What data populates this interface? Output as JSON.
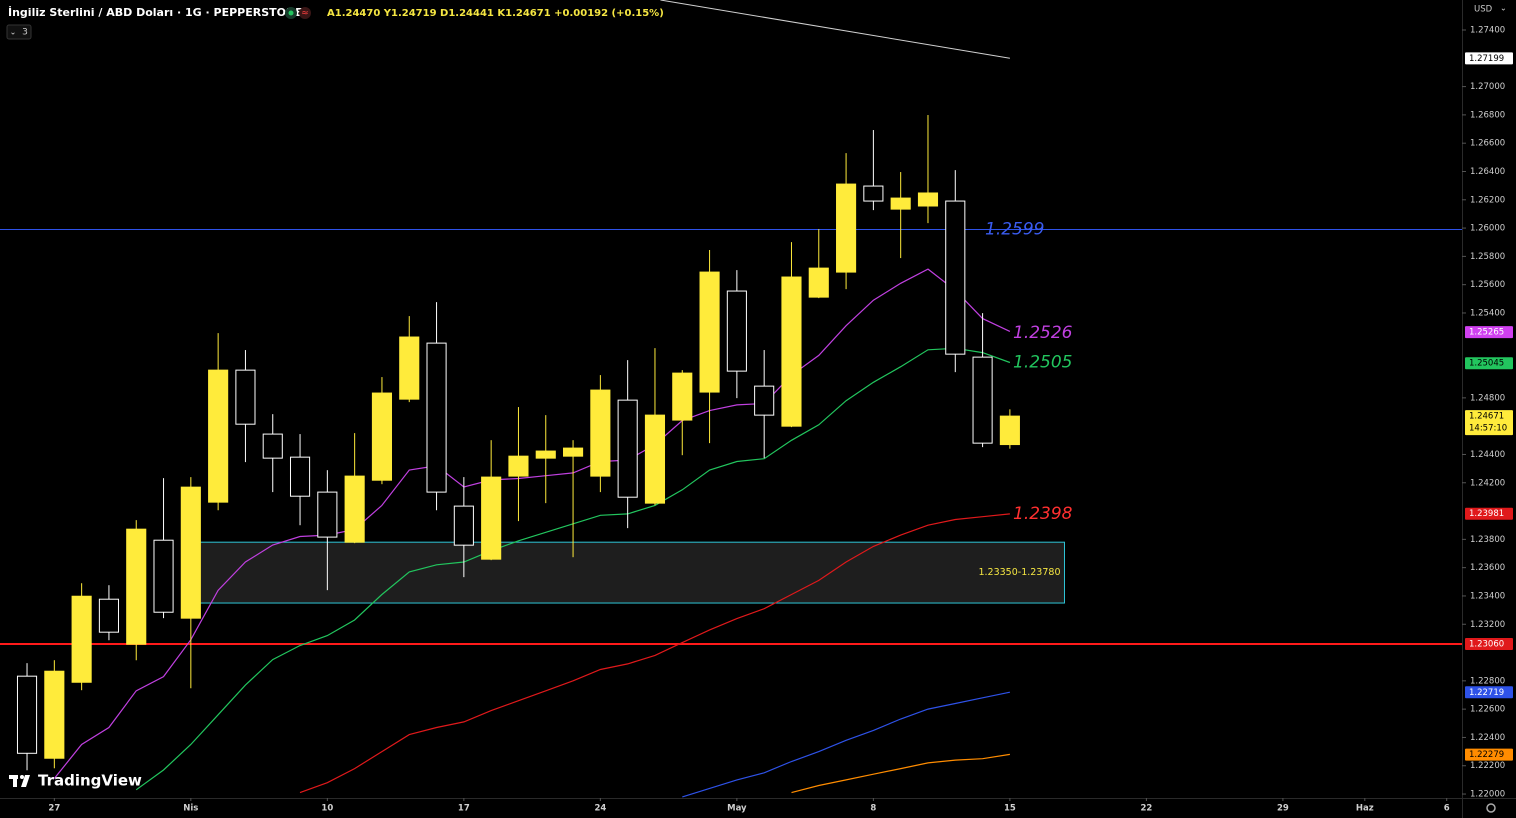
{
  "chart_data": {
    "type": "candlestick",
    "symbol": "İngiliz Sterlini / ABD Doları · 1G · PEPPERSTONE",
    "ohlc_text": "A1.24470 Y1.24719 D1.24441 K1.24671 +0.00192 (+0.15%)",
    "indicator_count": "3",
    "currency": "USD",
    "brand": "TradingView",
    "bull_color": "#ffeb3b",
    "bear_color": "#ffffff",
    "open": [
      1.22833,
      1.22253,
      1.2279,
      1.23377,
      1.23059,
      1.23794,
      1.23243,
      1.24063,
      1.24996,
      1.24544,
      1.24381,
      1.24134,
      1.2378,
      1.24218,
      1.24791,
      1.25187,
      1.24035,
      1.2366,
      1.24247,
      1.24374,
      1.24388,
      1.24247,
      1.24784,
      1.24056,
      1.24643,
      1.24841,
      1.25555,
      1.24883,
      1.246,
      1.25512,
      1.25689,
      1.26297,
      1.26134,
      1.26156,
      1.26191,
      1.25088,
      1.2447
    ],
    "high": [
      1.22925,
      1.22946,
      1.2349,
      1.23476,
      1.23936,
      1.24233,
      1.2424,
      1.25258,
      1.25138,
      1.24685,
      1.24544,
      1.24289,
      1.24551,
      1.24947,
      1.25378,
      1.25477,
      1.2424,
      1.24501,
      1.24735,
      1.24678,
      1.24501,
      1.24961,
      1.25067,
      1.25152,
      1.24996,
      1.25845,
      1.25703,
      1.25138,
      1.25901,
      1.25993,
      1.2653,
      1.26693,
      1.26396,
      1.26799,
      1.2641,
      1.25399,
      1.24719
    ],
    "low": [
      1.22168,
      1.22182,
      1.22734,
      1.23087,
      1.22946,
      1.23243,
      1.22748,
      1.24006,
      1.24346,
      1.24134,
      1.239,
      1.23441,
      1.23773,
      1.2419,
      1.2477,
      1.24006,
      1.23533,
      1.23653,
      1.23929,
      1.24056,
      1.23674,
      1.24134,
      1.23879,
      1.24042,
      1.24395,
      1.2448,
      1.24798,
      1.24374,
      1.24593,
      1.25505,
      1.25569,
      1.26127,
      1.25788,
      1.26035,
      1.24982,
      1.24452,
      1.24441
    ],
    "close": [
      1.22288,
      1.22868,
      1.23398,
      1.23144,
      1.23872,
      1.23285,
      1.24169,
      1.24996,
      1.24614,
      1.24374,
      1.24105,
      1.23816,
      1.24247,
      1.24834,
      1.2523,
      1.24134,
      1.23759,
      1.2424,
      1.24388,
      1.24424,
      1.24445,
      1.24855,
      1.24098,
      1.24678,
      1.24975,
      1.25689,
      1.24989,
      1.24678,
      1.25654,
      1.25717,
      1.26311,
      1.26191,
      1.26212,
      1.26248,
      1.25109,
      1.2448,
      1.24671
    ],
    "overlays": [
      {
        "color": "#c040e0",
        "values": [
          null,
          1.2211,
          1.2235,
          1.2247,
          1.2273,
          1.2283,
          1.2309,
          1.2344,
          1.2364,
          1.2376,
          1.2382,
          1.2383,
          1.2387,
          1.2404,
          1.2429,
          1.2432,
          1.2417,
          1.2422,
          1.2423,
          1.2425,
          1.2427,
          1.2435,
          1.2436,
          1.2447,
          1.2464,
          1.2471,
          1.2475,
          1.2476,
          1.2496,
          1.251,
          1.2531,
          1.2549,
          1.2561,
          1.2571,
          1.2556,
          1.2536,
          1.2527
        ]
      },
      {
        "color": "#22c55e",
        "values": [
          null,
          null,
          null,
          null,
          1.2203,
          1.2217,
          1.2235,
          1.2256,
          1.2277,
          1.2295,
          1.2305,
          1.2312,
          1.2323,
          1.2341,
          1.2357,
          1.2362,
          1.2364,
          1.2372,
          1.2379,
          1.2385,
          1.2391,
          1.2397,
          1.2398,
          1.2404,
          1.2415,
          1.2429,
          1.2435,
          1.2437,
          1.245,
          1.2461,
          1.2478,
          1.2491,
          1.2502,
          1.2514,
          1.2515,
          1.2512,
          1.2505
        ]
      },
      {
        "color": "#e0191b",
        "values": [
          null,
          null,
          null,
          null,
          null,
          null,
          null,
          null,
          null,
          null,
          1.2201,
          1.2208,
          1.2218,
          1.223,
          1.2242,
          1.2247,
          1.2251,
          1.2259,
          1.2266,
          1.2273,
          1.228,
          1.2288,
          1.2292,
          1.2298,
          1.2307,
          1.2316,
          1.2324,
          1.2331,
          1.2341,
          1.2351,
          1.2364,
          1.2375,
          1.2383,
          1.239,
          1.2394,
          1.2396,
          1.2398
        ]
      },
      {
        "color": "#2e52e8",
        "values": [
          null,
          null,
          null,
          null,
          null,
          null,
          null,
          null,
          null,
          null,
          null,
          null,
          null,
          null,
          null,
          null,
          null,
          null,
          null,
          null,
          null,
          null,
          null,
          null,
          1.2198,
          1.2204,
          1.221,
          1.2215,
          1.2223,
          1.223,
          1.2238,
          1.2245,
          1.2253,
          1.226,
          1.2264,
          1.2268,
          1.2272
        ]
      },
      {
        "color": "#ff8c00",
        "values": [
          null,
          null,
          null,
          null,
          null,
          null,
          null,
          null,
          null,
          null,
          null,
          null,
          null,
          null,
          null,
          null,
          null,
          null,
          null,
          null,
          null,
          null,
          null,
          null,
          null,
          null,
          null,
          null,
          1.2201,
          1.2206,
          1.221,
          1.2214,
          1.2218,
          1.2222,
          1.2224,
          1.2225,
          1.2228
        ]
      }
    ],
    "hlines": [
      {
        "value": 1.2599,
        "color": "#2e52e8"
      },
      {
        "value": 1.2306,
        "color": "#ff1a1a"
      }
    ],
    "trendline": {
      "x": [
        23.2,
        36
      ],
      "y": [
        1.27612,
        1.272
      ],
      "color": "#d0d0d0"
    },
    "zone": {
      "low": 1.2335,
      "high": 1.2378,
      "start": 6,
      "end": 38,
      "label": "1.23350-1.23780",
      "color": "#2ec4d6"
    },
    "annotations": [
      {
        "value": 1.2599,
        "color": "#3a5cf0"
      },
      {
        "value": 1.2526,
        "color": "#c040e0"
      },
      {
        "value": 1.2505,
        "color": "#22c55e"
      },
      {
        "value": 1.2398,
        "color": "#ff3030"
      }
    ],
    "markers": [
      {
        "price": 1.27199,
        "color": "#ffffff",
        "text_color": "#000000"
      },
      {
        "price": 1.25265,
        "color": "#d040f0",
        "text_color": "#ffffff"
      },
      {
        "price": 1.25045,
        "color": "#22c55e",
        "text_color": "#000000"
      },
      {
        "price": 1.24671,
        "countdown": "14:57:10",
        "color": "#ffeb3b",
        "text_color": "#000000"
      },
      {
        "price": 1.23981,
        "color": "#e0191b",
        "text_color": "#ffffff"
      },
      {
        "price": 1.2306,
        "label": "1.23060",
        "color": "#e0191b",
        "text_color": "#ffffff"
      },
      {
        "price": 1.22719,
        "color": "#2e52e8",
        "text_color": "#ffffff"
      },
      {
        "price": 1.22279,
        "color": "#ff8c00",
        "text_color": "#000000"
      }
    ],
    "xlim": [
      -0.99,
      52.56
    ],
    "ylim": [
      1.21972,
      1.27612
    ],
    "xticks": [
      {
        "value": 1,
        "label": "27"
      },
      {
        "value": 6,
        "label": "Nis"
      },
      {
        "value": 11,
        "label": "10"
      },
      {
        "value": 16,
        "label": "17"
      },
      {
        "value": 21,
        "label": "24"
      },
      {
        "value": 26,
        "label": "May"
      },
      {
        "value": 31,
        "label": "8"
      },
      {
        "value": 36,
        "label": "15"
      },
      {
        "value": 41,
        "label": "22"
      },
      {
        "value": 46,
        "label": "29"
      },
      {
        "value": 49,
        "label": "Haz"
      },
      {
        "value": 52,
        "label": "6"
      }
    ],
    "yticks": [
      {
        "value": 1.274,
        "label": "1.27400"
      },
      {
        "value": 1.27,
        "label": "1.27000"
      },
      {
        "value": 1.268,
        "label": "1.26800"
      },
      {
        "value": 1.266,
        "label": "1.26600"
      },
      {
        "value": 1.264,
        "label": "1.26400"
      },
      {
        "value": 1.262,
        "label": "1.26200"
      },
      {
        "value": 1.26,
        "label": "1.26000"
      },
      {
        "value": 1.258,
        "label": "1.25800"
      },
      {
        "value": 1.256,
        "label": "1.25600"
      },
      {
        "value": 1.254,
        "label": "1.25400"
      },
      {
        "value": 1.248,
        "label": "1.24800"
      },
      {
        "value": 1.244,
        "label": "1.24400"
      },
      {
        "value": 1.242,
        "label": "1.24200"
      },
      {
        "value": 1.238,
        "label": "1.23800"
      },
      {
        "value": 1.236,
        "label": "1.23600"
      },
      {
        "value": 1.234,
        "label": "1.23400"
      },
      {
        "value": 1.232,
        "label": "1.23200"
      },
      {
        "value": 1.228,
        "label": "1.22800"
      },
      {
        "value": 1.226,
        "label": "1.22600"
      },
      {
        "value": 1.224,
        "label": "1.22400"
      },
      {
        "value": 1.222,
        "label": "1.22200"
      },
      {
        "value": 1.22,
        "label": "1.22000"
      }
    ],
    "grid": false
  }
}
